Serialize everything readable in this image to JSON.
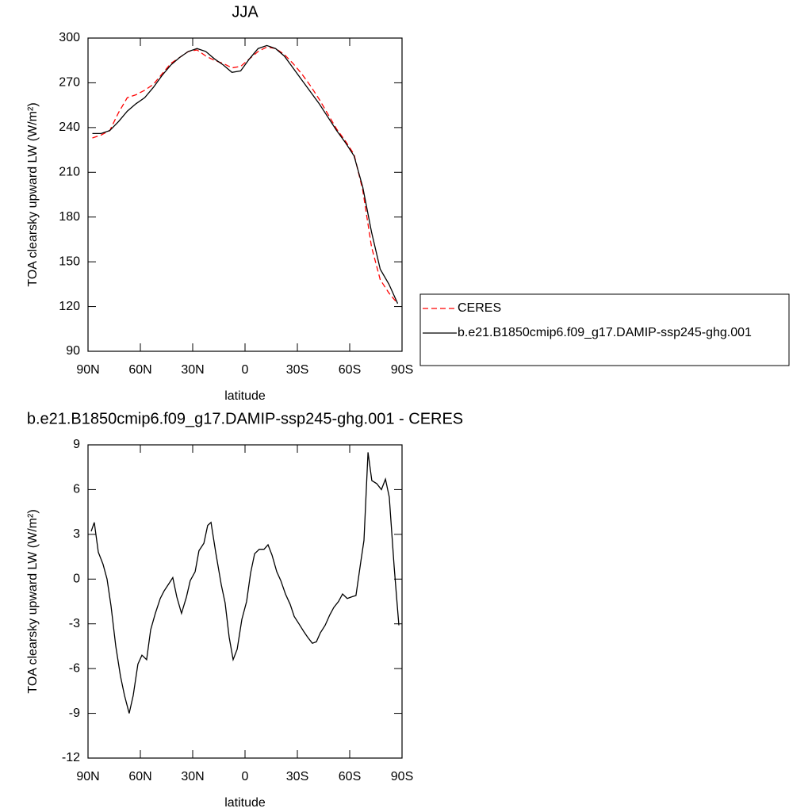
{
  "chart_data": [
    {
      "type": "line",
      "title": "JJA",
      "xlabel": "latitude",
      "ylabel": "TOA clearsky upward LW (W/m²)",
      "xlim": [
        90,
        -90
      ],
      "ylim": [
        90,
        300
      ],
      "xticks": [
        {
          "value": 90,
          "label": "90N"
        },
        {
          "value": 60,
          "label": "60N"
        },
        {
          "value": 30,
          "label": "30N"
        },
        0,
        {
          "value": -30,
          "label": "30S"
        },
        {
          "value": -60,
          "label": "60S"
        },
        {
          "value": -90,
          "label": "90S"
        }
      ],
      "yticks": [
        90,
        120,
        150,
        180,
        210,
        240,
        270,
        300
      ],
      "legend": "right",
      "x": [
        87.5,
        82.5,
        77.5,
        72.5,
        67.5,
        62.5,
        57.5,
        52.5,
        47.5,
        42.5,
        37.5,
        32.5,
        27.5,
        22.5,
        17.5,
        12.5,
        7.5,
        2.5,
        -2.5,
        -7.5,
        -12.5,
        -17.5,
        -22.5,
        -27.5,
        -32.5,
        -37.5,
        -42.5,
        -47.5,
        -52.5,
        -57.5,
        -62.5,
        -67.5,
        -72.5,
        -77.5,
        -82.5,
        -87.5
      ],
      "series": [
        {
          "name": "CERES",
          "color": "#ff0000",
          "dashed": true,
          "values": [
            233,
            235,
            238,
            250,
            260,
            262,
            265,
            269,
            276,
            283,
            287,
            291,
            292,
            288,
            285,
            283,
            280,
            281,
            286,
            291,
            294,
            293,
            289,
            283,
            276,
            268,
            259,
            249,
            239,
            231,
            222,
            198,
            160,
            138,
            129,
            122
          ]
        },
        {
          "name": "b.e21.B1850cmip6.f09_g17.DAMIP-ssp245-ghg.001",
          "color": "#000000",
          "dashed": false,
          "values": [
            236,
            236,
            238,
            244,
            251,
            256,
            260,
            267,
            275,
            282,
            287,
            291,
            293,
            291,
            286,
            282,
            277,
            278,
            286,
            293,
            295,
            293,
            288,
            280,
            272,
            264,
            256,
            247,
            238,
            230,
            221,
            200,
            170,
            145,
            135,
            122
          ]
        }
      ]
    },
    {
      "type": "line",
      "title": "b.e21.B1850cmip6.f09_g17.DAMIP-ssp245-ghg.001 - CERES",
      "xlabel": "latitude",
      "ylabel": "TOA clearsky upward LW (W/m²)",
      "xlim": [
        90,
        -90
      ],
      "ylim": [
        -12,
        9
      ],
      "xticks": [
        {
          "value": 90,
          "label": "90N"
        },
        {
          "value": 60,
          "label": "60N"
        },
        {
          "value": 30,
          "label": "30N"
        },
        0,
        {
          "value": -30,
          "label": "30S"
        },
        {
          "value": -60,
          "label": "60S"
        },
        {
          "value": -90,
          "label": "90S"
        }
      ],
      "yticks": [
        -12,
        -9,
        -6,
        -3,
        0,
        3,
        6,
        9
      ],
      "x": [
        88.2,
        86.4,
        84.1,
        81.4,
        79.1,
        76.8,
        74.1,
        71.4,
        69.1,
        66.4,
        64.1,
        61.4,
        59.1,
        56.4,
        54.1,
        51.4,
        48.6,
        46.4,
        43.6,
        41.4,
        39.1,
        36.4,
        33.6,
        31.4,
        28.6,
        26.4,
        23.6,
        21.4,
        19.5,
        16.8,
        13.6,
        11.4,
        9.1,
        6.8,
        4.5,
        1.8,
        -0.9,
        -3.2,
        -5.5,
        -8.2,
        -10.9,
        -13.2,
        -15.5,
        -18.2,
        -20.5,
        -23.2,
        -25.9,
        -28.2,
        -30.9,
        -33.6,
        -35.9,
        -38.6,
        -40.9,
        -43.2,
        -45.9,
        -48.6,
        -50.9,
        -53.6,
        -55.9,
        -58.6,
        -60.9,
        -63.6,
        -66.4,
        -68.2,
        -70.5,
        -72.7,
        -75.5,
        -78.2,
        -80.5,
        -82.7,
        -85.5,
        -88.2
      ],
      "series": [
        {
          "color": "#000000",
          "dashed": false,
          "values": [
            3.2,
            3.8,
            1.8,
            1.0,
            0,
            -1.8,
            -4.5,
            -6.5,
            -7.8,
            -9.0,
            -7.8,
            -5.7,
            -5.1,
            -5.4,
            -3.4,
            -2.3,
            -1.3,
            -0.8,
            -0.3,
            0.1,
            -1.2,
            -2.3,
            -1.2,
            -0.1,
            0.5,
            1.9,
            2.4,
            3.6,
            3.8,
            1.8,
            -0.4,
            -1.6,
            -3.9,
            -5.4,
            -4.7,
            -2.7,
            -1.5,
            0.4,
            1.7,
            2.0,
            2.0,
            2.3,
            1.6,
            0.5,
            -0.1,
            -1.0,
            -1.7,
            -2.5,
            -3.0,
            -3.5,
            -3.9,
            -4.3,
            -4.2,
            -3.6,
            -3.1,
            -2.4,
            -1.9,
            -1.5,
            -1.0,
            -1.3,
            -1.2,
            -1.1,
            1.2,
            2.6,
            8.5,
            6.6,
            6.4,
            6.0,
            6.7,
            5.5,
            0.8,
            -3.1
          ]
        }
      ]
    }
  ]
}
